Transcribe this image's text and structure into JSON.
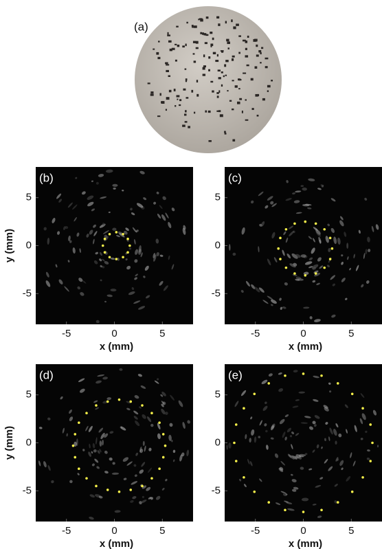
{
  "figure": {
    "panel_a": {
      "label": "(a)"
    }
  },
  "chart_data": [
    {
      "type": "scatter",
      "label": "(b)",
      "xlabel": "x (mm)",
      "ylabel": "y (mm)",
      "xlim": [
        -8.2,
        8.2
      ],
      "ylim": [
        -8.2,
        8.2
      ],
      "xticks": [
        -5,
        0,
        5
      ],
      "yticks": [
        5,
        0,
        -5
      ],
      "series": [
        {
          "color": "#f5f04a",
          "x": [
            1.6,
            1.4,
            0.9,
            0.2,
            -0.5,
            -1.0,
            -1.2,
            -1.0,
            -0.5,
            0.2,
            0.9,
            1.4
          ],
          "values": [
            0,
            0.7,
            1.2,
            1.4,
            1.2,
            0.7,
            0,
            -0.7,
            -1.2,
            -1.4,
            -1.2,
            -0.7
          ]
        }
      ]
    },
    {
      "type": "scatter",
      "label": "(c)",
      "xlabel": "x (mm)",
      "xlim": [
        -8.2,
        8.2
      ],
      "ylim": [
        -8.2,
        8.2
      ],
      "xticks": [
        -5,
        0,
        5
      ],
      "yticks": [
        5,
        0,
        -5
      ],
      "series": [
        {
          "color": "#f5f04a",
          "x": [
            3.0,
            2.8,
            2.2,
            1.3,
            0.2,
            -0.9,
            -1.8,
            -2.4,
            -2.6,
            -2.4,
            -1.8,
            -0.9,
            0.2,
            1.3,
            2.2,
            2.8
          ],
          "values": [
            -0.3,
            0.8,
            1.7,
            2.3,
            2.5,
            2.3,
            1.7,
            0.8,
            -0.3,
            -1.4,
            -2.3,
            -2.9,
            -3.1,
            -2.9,
            -2.3,
            -1.4
          ]
        }
      ]
    },
    {
      "type": "scatter",
      "label": "(d)",
      "xlabel": "x (mm)",
      "ylabel": "y (mm)",
      "xlim": [
        -8.2,
        8.2
      ],
      "ylim": [
        -8.2,
        8.2
      ],
      "xticks": [
        -5,
        0,
        5
      ],
      "yticks": [
        5,
        0,
        -5
      ],
      "series": [
        {
          "color": "#f5f04a",
          "x": [
            5.3,
            5.1,
            4.7,
            3.9,
            2.9,
            1.7,
            0.5,
            -0.7,
            -1.9,
            -2.9,
            -3.7,
            -4.1,
            -4.3,
            -4.1,
            -3.7,
            -2.9,
            -1.9,
            -0.7,
            0.5,
            1.7,
            2.9,
            3.9,
            4.7,
            5.1
          ],
          "values": [
            -0.3,
            0.9,
            2.1,
            3.1,
            3.9,
            4.3,
            4.5,
            4.3,
            3.9,
            3.1,
            2.1,
            0.9,
            -0.3,
            -1.5,
            -2.7,
            -3.7,
            -4.5,
            -4.9,
            -5.1,
            -4.9,
            -4.5,
            -3.7,
            -2.7,
            -1.5
          ]
        }
      ]
    },
    {
      "type": "scatter",
      "label": "(e)",
      "xlabel": "x (mm)",
      "xlim": [
        -8.2,
        8.2
      ],
      "ylim": [
        -8.2,
        8.2
      ],
      "xticks": [
        -5,
        0,
        5
      ],
      "yticks": [
        5,
        0,
        -5
      ],
      "series": [
        {
          "color": "#f5f04a",
          "x": [
            7.2,
            7.0,
            6.2,
            5.1,
            3.6,
            1.9,
            0,
            -1.9,
            -3.6,
            -5.1,
            -6.2,
            -7.0,
            -7.2,
            -7.0,
            -6.2,
            -5.1,
            -3.6,
            -1.9,
            0,
            1.9,
            3.6,
            5.1,
            6.2,
            7.0
          ],
          "values": [
            0,
            1.9,
            3.6,
            5.1,
            6.2,
            7.0,
            7.2,
            7.0,
            6.2,
            5.1,
            3.6,
            1.9,
            0,
            -1.9,
            -3.6,
            -5.1,
            -6.2,
            -7.0,
            -7.2,
            -7.0,
            -6.2,
            -5.1,
            -3.6,
            -1.9
          ]
        }
      ]
    }
  ]
}
